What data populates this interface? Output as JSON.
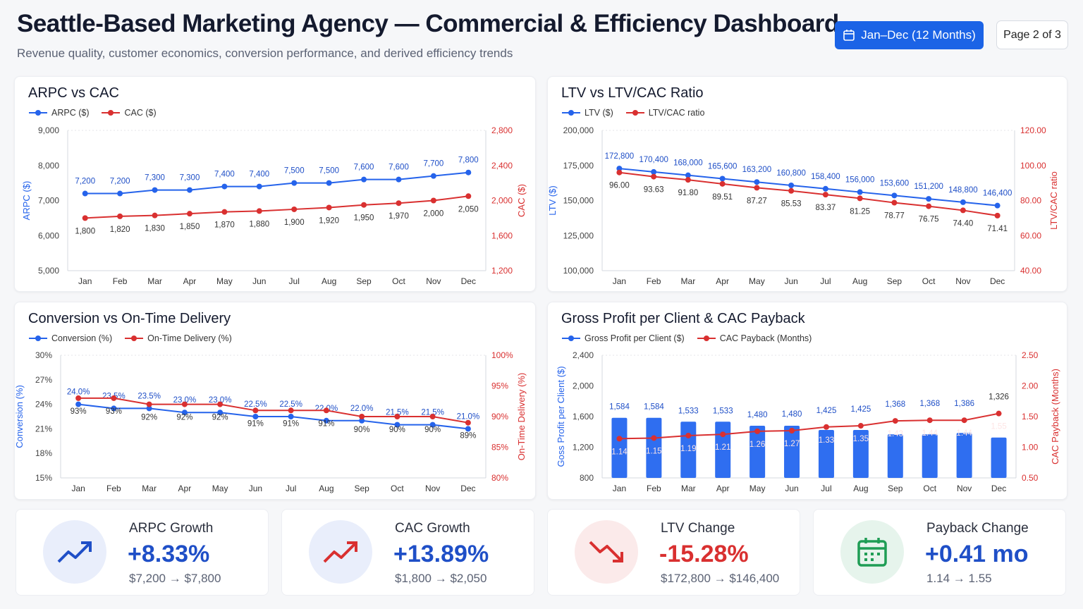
{
  "header": {
    "title": "Seattle-Based Marketing Agency — Commercial & Efficiency Dashboard",
    "subtitle": "Revenue quality, customer economics, conversion performance, and derived efficiency trends",
    "date_range": "Jan–Dec (12 Months)",
    "page": "Page 2 of 3"
  },
  "colors": {
    "blue": "#2563eb",
    "red": "#d93030",
    "green": "#1f9d55"
  },
  "kpis": [
    {
      "label": "ARPC Growth",
      "value": "+8.33%",
      "range": "$7,200 → $7,800",
      "icon": "trend-up-icon",
      "color": "#1f4fc7",
      "bg": "#e9eefb"
    },
    {
      "label": "CAC Growth",
      "value": "+13.89%",
      "range": "$1,800 → $2,050",
      "icon": "trend-up-icon",
      "color": "#1f4fc7",
      "bg": "#e9eefb"
    },
    {
      "label": "LTV Change",
      "value": "-15.28%",
      "range": "$172,800 → $146,400",
      "icon": "trend-down-icon",
      "color": "#d93030",
      "bg": "#fbeaea"
    },
    {
      "label": "Payback Change",
      "value": "+0.41 mo",
      "range": "1.14 → 1.55",
      "icon": "calendar-icon",
      "color": "#1f4fc7",
      "bg": "#e6f4ec"
    }
  ],
  "chart_data": [
    {
      "type": "line",
      "title": "ARPC vs CAC",
      "categories": [
        "Jan",
        "Feb",
        "Mar",
        "Apr",
        "May",
        "Jun",
        "Jul",
        "Aug",
        "Sep",
        "Oct",
        "Nov",
        "Dec"
      ],
      "ylabel": "ARPC ($)",
      "ylim": [
        5000,
        9000
      ],
      "yticks": [
        "5,000",
        "6,000",
        "7,000",
        "8,000",
        "9,000"
      ],
      "y2label": "CAC ($)",
      "y2lim": [
        1200,
        2800
      ],
      "y2ticks": [
        "1,200",
        "1,600",
        "2,000",
        "2,400",
        "2,800"
      ],
      "grid": false,
      "legend": "top-left",
      "series": [
        {
          "name": "ARPC ($)",
          "axis": "left",
          "kind": "line",
          "values": [
            7200,
            7200,
            7300,
            7300,
            7400,
            7400,
            7500,
            7500,
            7600,
            7600,
            7700,
            7800
          ],
          "labels": [
            "7,200",
            "7,200",
            "7,300",
            "7,300",
            "7,400",
            "7,400",
            "7,500",
            "7,500",
            "7,600",
            "7,600",
            "7,700",
            "7,800"
          ]
        },
        {
          "name": "CAC ($)",
          "axis": "right",
          "kind": "line",
          "values": [
            1800,
            1820,
            1830,
            1850,
            1870,
            1880,
            1900,
            1920,
            1950,
            1970,
            2000,
            2050
          ],
          "labels": [
            "1,800",
            "1,820",
            "1,830",
            "1,850",
            "1,870",
            "1,880",
            "1,900",
            "1,920",
            "1,950",
            "1,970",
            "2,000",
            "2,050"
          ]
        }
      ]
    },
    {
      "type": "line",
      "title": "LTV vs LTV/CAC Ratio",
      "categories": [
        "Jan",
        "Feb",
        "Mar",
        "Apr",
        "May",
        "Jun",
        "Jul",
        "Aug",
        "Sep",
        "Oct",
        "Nov",
        "Dec"
      ],
      "ylabel": "LTV ($)",
      "ylim": [
        100000,
        200000
      ],
      "yticks": [
        "100,000",
        "125,000",
        "150,000",
        "175,000",
        "200,000"
      ],
      "y2label": "LTV/CAC ratio",
      "y2lim": [
        40,
        120
      ],
      "y2ticks": [
        "40.00",
        "60.00",
        "80.00",
        "100.00",
        "120.00"
      ],
      "grid": false,
      "legend": "top-left",
      "series": [
        {
          "name": "LTV ($)",
          "axis": "left",
          "kind": "line",
          "values": [
            172800,
            170400,
            168000,
            165600,
            163200,
            160800,
            158400,
            156000,
            153600,
            151200,
            148800,
            146400
          ],
          "labels": [
            "172,800",
            "170,400",
            "168,000",
            "165,600",
            "163,200",
            "160,800",
            "158,400",
            "156,000",
            "153,600",
            "151,200",
            "148,800",
            "146,400"
          ]
        },
        {
          "name": "LTV/CAC ratio",
          "axis": "right",
          "kind": "line",
          "values": [
            96.0,
            93.63,
            91.8,
            89.51,
            87.27,
            85.53,
            83.37,
            81.25,
            78.77,
            76.75,
            74.4,
            71.41
          ],
          "labels": [
            "96.00",
            "93.63",
            "91.80",
            "89.51",
            "87.27",
            "85.53",
            "83.37",
            "81.25",
            "78.77",
            "76.75",
            "74.40",
            "71.41"
          ]
        }
      ]
    },
    {
      "type": "line",
      "title": "Conversion vs On-Time Delivery",
      "categories": [
        "Jan",
        "Feb",
        "Mar",
        "Apr",
        "May",
        "Jun",
        "Jul",
        "Aug",
        "Sep",
        "Oct",
        "Nov",
        "Dec"
      ],
      "ylabel": "Conversion (%)",
      "ylim": [
        15,
        30
      ],
      "yticks": [
        "15%",
        "18%",
        "21%",
        "24%",
        "27%",
        "30%"
      ],
      "y2label": "On-Time Delivery (%)",
      "y2lim": [
        80,
        100
      ],
      "y2ticks": [
        "80%",
        "85%",
        "90%",
        "95%",
        "100%"
      ],
      "grid": false,
      "legend": "top-left",
      "series": [
        {
          "name": "Conversion (%)",
          "axis": "left",
          "kind": "line",
          "values": [
            24.0,
            23.5,
            23.5,
            23.0,
            23.0,
            22.5,
            22.5,
            22.0,
            22.0,
            21.5,
            21.5,
            21.0
          ],
          "labels": [
            "24.0%",
            "23.5%",
            "23.5%",
            "23.0%",
            "23.0%",
            "22.5%",
            "22.5%",
            "22.0%",
            "22.0%",
            "21.5%",
            "21.5%",
            "21.0%"
          ]
        },
        {
          "name": "On-Time Delivery (%)",
          "axis": "right",
          "kind": "line",
          "values": [
            93,
            93,
            92,
            92,
            92,
            91,
            91,
            91,
            90,
            90,
            90,
            89
          ],
          "labels": [
            "93%",
            "93%",
            "92%",
            "92%",
            "92%",
            "91%",
            "91%",
            "91%",
            "90%",
            "90%",
            "90%",
            "89%"
          ]
        }
      ]
    },
    {
      "type": "bar",
      "title": "Gross Profit per Client & CAC Payback",
      "categories": [
        "Jan",
        "Feb",
        "Mar",
        "Apr",
        "May",
        "Jun",
        "Jul",
        "Aug",
        "Sep",
        "Oct",
        "Nov",
        "Dec"
      ],
      "ylabel": "Goss Profit per Client ($)",
      "ylim": [
        800,
        2400
      ],
      "yticks": [
        "800",
        "1,200",
        "1,600",
        "2,000",
        "2,400"
      ],
      "y2label": "CAC Payback (Months)",
      "y2lim": [
        0.5,
        2.5
      ],
      "y2ticks": [
        "0.50",
        "1.00",
        "1.50",
        "2.00",
        "2.50"
      ],
      "grid": false,
      "legend": "top-left",
      "series": [
        {
          "name": "Gross Profit per Client ($)",
          "axis": "left",
          "kind": "bar",
          "values": [
            1584,
            1584,
            1533,
            1533,
            1480,
            1480,
            1425,
            1425,
            1368,
            1368,
            1386,
            1326
          ],
          "labels": [
            "1,584",
            "1,584",
            "1,533",
            "1,533",
            "1,480",
            "1,480",
            "1,425",
            "1,425",
            "1,368",
            "1,368",
            "1,386",
            "1,326"
          ]
        },
        {
          "name": "CAC Payback (Months)",
          "axis": "right",
          "kind": "line",
          "values": [
            1.14,
            1.15,
            1.19,
            1.21,
            1.26,
            1.27,
            1.33,
            1.35,
            1.43,
            1.44,
            1.44,
            1.55
          ],
          "labels": [
            "1.14",
            "1.15",
            "1.19",
            "1.21",
            "1.26",
            "1.27",
            "1.33",
            "1.35",
            "1.43",
            "1.44",
            "1.44",
            "1.55"
          ]
        }
      ]
    }
  ]
}
